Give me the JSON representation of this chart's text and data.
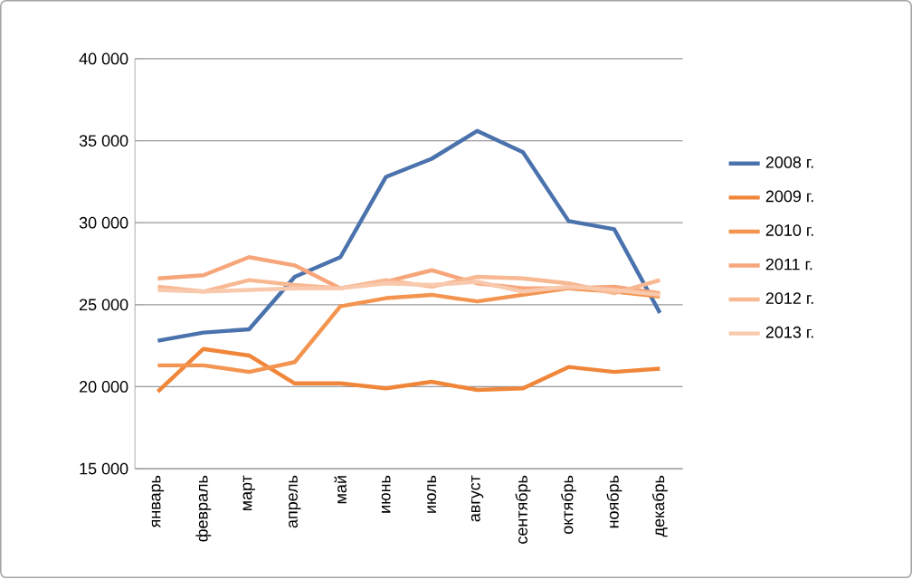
{
  "chart_data": {
    "type": "line",
    "categories": [
      "январь",
      "февраль",
      "март",
      "апрель",
      "май",
      "июнь",
      "июль",
      "август",
      "сентябрь",
      "октябрь",
      "ноябрь",
      "декабрь"
    ],
    "series": [
      {
        "name": "2008 г.",
        "color": "#4a72ac",
        "values": [
          22800,
          23300,
          23500,
          26700,
          27900,
          32800,
          33900,
          35600,
          34300,
          30100,
          29600,
          24500
        ]
      },
      {
        "name": "2009 г.",
        "color": "#f0863a",
        "values": [
          19700,
          22300,
          21900,
          20200,
          20200,
          19900,
          20300,
          19800,
          19900,
          21200,
          20900,
          21100
        ]
      },
      {
        "name": "2010 г.",
        "color": "#f39550",
        "values": [
          21300,
          21300,
          20900,
          21500,
          24900,
          25400,
          25600,
          25200,
          25600,
          26000,
          25800,
          25500
        ]
      },
      {
        "name": "2011 г.",
        "color": "#f6a67a",
        "values": [
          26600,
          26800,
          27900,
          27400,
          26000,
          26400,
          27100,
          26300,
          26000,
          26000,
          26100,
          25700
        ]
      },
      {
        "name": "2012 г.",
        "color": "#f8b892",
        "values": [
          26100,
          25800,
          26500,
          26200,
          26000,
          26500,
          26100,
          26700,
          26600,
          26300,
          25700,
          26500
        ]
      },
      {
        "name": "2013 г.",
        "color": "#f9c9ad",
        "values": [
          25900,
          25800,
          25900,
          26000,
          26000,
          26300,
          26200,
          26400,
          25800,
          26100,
          25900,
          25600
        ]
      }
    ],
    "ylim": [
      15000,
      40000
    ],
    "yticks": [
      {
        "value": 15000,
        "label": "15 000"
      },
      {
        "value": 20000,
        "label": "20 000"
      },
      {
        "value": 25000,
        "label": "25 000"
      },
      {
        "value": 30000,
        "label": "30 000"
      },
      {
        "value": 35000,
        "label": "35 000"
      },
      {
        "value": 40000,
        "label": "40 000"
      }
    ],
    "grid": "y",
    "legend": "right",
    "marker": "none",
    "line_style": "solid"
  }
}
